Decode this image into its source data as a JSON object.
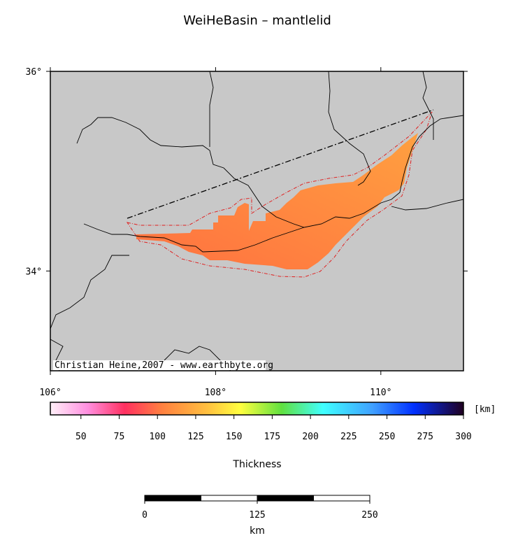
{
  "title": "WeiHeBasin – mantlelid",
  "credit": "Christian Heine,2007 - www.earthbyte.org",
  "map": {
    "xlim": [
      106,
      111
    ],
    "ylim": [
      33,
      36
    ],
    "xticks": [
      {
        "value": 106,
        "label": "106°"
      },
      {
        "value": 108,
        "label": "108°"
      },
      {
        "value": 110,
        "label": "110°"
      }
    ],
    "yticks": [
      {
        "value": 34,
        "label": "34°"
      },
      {
        "value": 36,
        "label": "36°"
      }
    ]
  },
  "colorbar": {
    "unit": "[km]",
    "label": "Thickness",
    "lim": [
      30,
      300
    ],
    "ticks": [
      50,
      75,
      100,
      125,
      150,
      175,
      200,
      225,
      250,
      275,
      300
    ]
  },
  "scalebar": {
    "lim": [
      0,
      250
    ],
    "ticks": [
      0,
      125,
      250
    ],
    "label": "km"
  }
}
